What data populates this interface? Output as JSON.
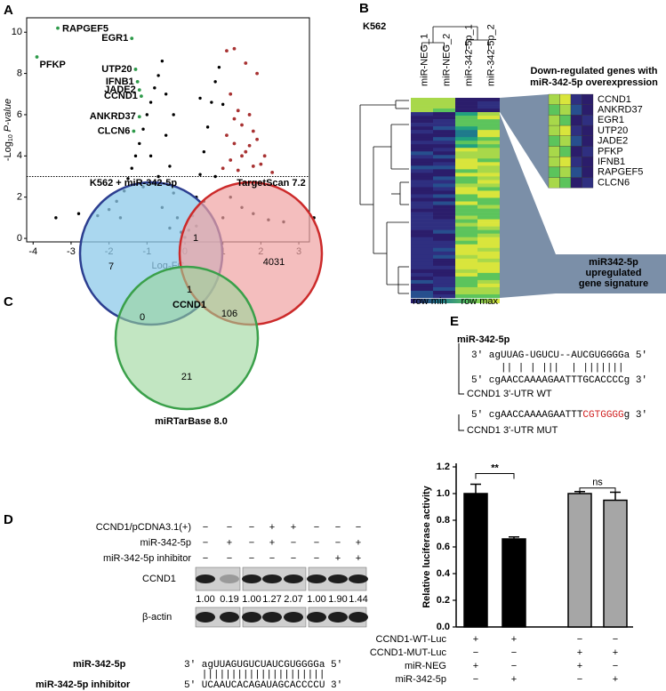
{
  "panel_labels": [
    "A",
    "B",
    "C",
    "D",
    "E"
  ],
  "chart_data": [
    {
      "type": "scatter",
      "xlabel": [
        "Log",
        "2",
        "FC"
      ],
      "ylabel": [
        "-Log",
        "10",
        " P-value"
      ],
      "xlim": [
        -4.17,
        3.28
      ],
      "ylim": [
        -0.17,
        10.7
      ],
      "xticks": [
        -4,
        -3,
        -2,
        -1,
        0,
        1,
        2,
        3
      ],
      "yticks": [
        0,
        2,
        4,
        6,
        8,
        10
      ],
      "hline": 3,
      "series": [
        {
          "color": "#000000",
          "x": [
            -2.8,
            -2.3,
            -2.0,
            -1.8,
            -1.6,
            -1.5,
            -1.4,
            -1.3,
            -1.2,
            -1.1,
            -1.0,
            -0.9,
            -0.8,
            -0.7,
            -0.6,
            -0.5,
            -0.5,
            -0.4,
            -0.3,
            -0.2,
            -0.1,
            0,
            0.1,
            0.2,
            0.3,
            0.4,
            0.5,
            0.6,
            0.7,
            0.8,
            0.9,
            1.0,
            -0.9,
            -0.7,
            -1.1,
            -0.6,
            0.5,
            0.8,
            1.2,
            1.5,
            1.8,
            2.2,
            2.6,
            -3.4,
            3.4,
            -0.3,
            0.4,
            -1.7,
            1.0,
            -0.4,
            0.3
          ],
          "values": [
            1.2,
            1.1,
            1.4,
            1.8,
            2.3,
            2.9,
            3.4,
            4.0,
            4.6,
            5.3,
            6.0,
            6.6,
            7.3,
            7.9,
            8.6,
            7.0,
            5.0,
            3.5,
            2.2,
            1.0,
            0.3,
            0.05,
            0.4,
            1.1,
            2.0,
            3.1,
            4.2,
            5.4,
            6.6,
            7.6,
            8.3,
            6.5,
            4.0,
            3.0,
            2.5,
            1.5,
            1.8,
            3.0,
            2.0,
            1.5,
            1.2,
            0.9,
            0.8,
            1.0,
            1.0,
            6.0,
            6.8,
            1.0,
            1.0,
            0.5,
            0.6
          ]
        },
        {
          "color": "#a83232",
          "x": [
            1.1,
            1.3,
            1.6,
            1.9,
            1.2,
            1.4,
            1.5,
            1.7,
            1.1,
            1.3,
            1.6,
            1.9,
            2.1,
            1.2,
            1.4,
            1.8,
            2.3,
            2.0,
            1.5,
            1.0,
            1.7,
            1.3,
            1.8
          ],
          "values": [
            9.1,
            9.2,
            8.5,
            8.0,
            7.0,
            6.2,
            5.5,
            6.0,
            5.0,
            4.6,
            4.2,
            4.8,
            4.0,
            3.8,
            3.3,
            3.5,
            3.2,
            3.6,
            4.0,
            3.4,
            4.5,
            5.8,
            5.2
          ]
        },
        {
          "color": "#2e9a4a",
          "x": [
            -3.35,
            -3.9,
            -1.4,
            -1.3,
            -1.25,
            -1.2,
            -1.15,
            -1.2,
            -1.35
          ],
          "values": [
            10.2,
            8.8,
            9.7,
            8.2,
            7.6,
            7.2,
            6.9,
            5.9,
            5.2
          ],
          "labels": [
            "RAPGEF5",
            "PFKP",
            "EGR1",
            "UTP20",
            "IFNB1",
            "JADE2",
            "CCND1",
            "ANKRD37",
            "CLCN6"
          ]
        }
      ]
    },
    {
      "type": "bar",
      "ylabel": "Relative luciferase activity",
      "values": [
        1.0,
        0.66,
        1.0,
        0.95
      ],
      "errors": [
        0.07,
        0.015,
        0.015,
        0.06
      ],
      "colors": [
        "#000000",
        "#000000",
        "#a6a6a6",
        "#a6a6a6"
      ],
      "ylim": [
        0,
        1.2
      ],
      "yticks": [
        {
          "value": 0,
          "label": "0.0"
        },
        0.2,
        0.4,
        0.6,
        0.8,
        {
          "value": 1,
          "label": "1.0"
        },
        1.2
      ],
      "annotations": [
        {
          "text": "**",
          "bars": [
            0,
            1
          ]
        },
        {
          "text": "ns",
          "bars": [
            2,
            3
          ]
        }
      ],
      "conditions": [
        {
          "label": "CCND1-WT-Luc",
          "signs": [
            "+",
            "+",
            "−",
            "−"
          ]
        },
        {
          "label": "CCND1-MUT-Luc",
          "signs": [
            "−",
            "−",
            "+",
            "+"
          ]
        },
        {
          "label": "miR-NEG",
          "signs": [
            "+",
            "−",
            "+",
            "−"
          ]
        },
        {
          "label": "miR-342-5p",
          "signs": [
            "−",
            "+",
            "−",
            "+"
          ]
        }
      ]
    }
  ],
  "heatmap": {
    "cell_line": "K562",
    "columns": [
      "miR-NEG_1",
      "miR-NEG_2",
      "miR-342-5p_1",
      "miR-342-5p_2"
    ],
    "legend": [
      "row min",
      "row max"
    ],
    "down_title": [
      "Down-regulated genes with",
      "miR-342-5p overexpression"
    ],
    "genes": [
      "CCND1",
      "ANKRD37",
      "EGR1",
      "UTP20",
      "JADE2",
      "PFKP",
      "IFNB1",
      "RAPGEF5",
      "CLCN6"
    ],
    "up_label": [
      "miR342-5p",
      "upregulated",
      "gene signature"
    ]
  },
  "venn": {
    "sets": [
      "K562 + miR-342-5p",
      "TargetScan 7.2",
      "miRTarBase 8.0"
    ],
    "only_a": 7,
    "ab": 1,
    "only_b": 4031,
    "abc": 1,
    "ac": 0,
    "bc": 106,
    "only_c": 21,
    "center_gene": "CCND1"
  },
  "western": {
    "rows": [
      {
        "label": "CCND1/pCDNA3.1(+)",
        "signs": [
          "−",
          "−",
          "−",
          "+",
          "+",
          "−",
          "−",
          "−"
        ]
      },
      {
        "label": "miR-342-5p",
        "signs": [
          "−",
          "+",
          "−",
          "+",
          "−",
          "−",
          "−",
          "+"
        ]
      },
      {
        "label": "miR-342-5p inhibitor",
        "signs": [
          "−",
          "−",
          "−",
          "−",
          "−",
          "−",
          "+",
          "+"
        ]
      }
    ],
    "bands": [
      "CCND1",
      "β-actin"
    ],
    "ratios": [
      "1.00",
      "0.19",
      "1.00",
      "1.27",
      "2.07",
      "1.00",
      "1.90",
      "1.44"
    ],
    "mir_label": "miR-342-5p",
    "mir": "3' agUUAGUGUCUAUCGUGGGGa 5'",
    "pairs": "   |||||||||||||||||||||",
    "inhibitor_label": "miR-342-5p inhibitor",
    "inhibitor": "5' UCAAUCACAGAUAGCACCCCU 3'"
  },
  "sequences": {
    "title": "miR-342-5p",
    "mir": "3' agUUAG-UGUCU--AUCGUGGGGa 5'",
    "pairs": "     || | | |||  | |||||||",
    "wt": "5' cgAACCAAAAGAATTTGCACCCCg 3'",
    "wt_label": "CCND1 3'-UTR WT",
    "mut": [
      "5' cgAACCAAAAGAATTT",
      "CGTGGGG",
      "g 3'"
    ],
    "mut_label": "CCND1 3'-UTR MUT"
  }
}
